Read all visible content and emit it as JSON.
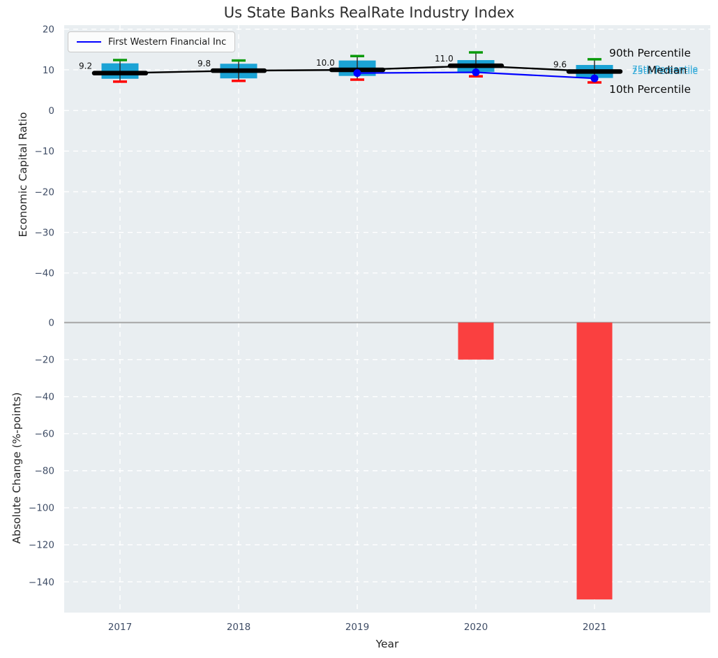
{
  "title": "Us State Banks RealRate Industry Index",
  "colors": {
    "box": "#1ba3d5",
    "bar": "#fa4040",
    "median": "#000000",
    "company_line": "#0000ff",
    "cap_top": "#0a9a0a",
    "cap_bottom": "#ff0000",
    "whisker": "#2d2d2d",
    "plot_bg": "#e9eef1",
    "grid": "#ffffff",
    "zero_line": "#a6a6a6",
    "tick_text": "#3f4d66",
    "annotation_text": "#0d0d0d",
    "percentile_text": "#2aa7d8"
  },
  "chart_data": [
    {
      "type": "boxplot",
      "title": "Us State Banks RealRate Industry Index",
      "x": [
        2017,
        2018,
        2019,
        2020,
        2021
      ],
      "ylabel": "Economic Capital Ratio",
      "ylim": [
        -50,
        21
      ],
      "yticks": [
        20,
        10,
        0,
        -10,
        -20,
        -30,
        -40
      ],
      "ytick_labels": [
        "20",
        "10",
        "0",
        "−10",
        "−20",
        "−30",
        "−40"
      ],
      "grid": true,
      "legend_position": "upper left",
      "boxes": {
        "p90": [
          12.4,
          12.3,
          13.4,
          14.3,
          12.6
        ],
        "p75": [
          11.6,
          11.5,
          12.3,
          12.4,
          11.2
        ],
        "median": [
          9.2,
          9.8,
          10.0,
          11.0,
          9.6
        ],
        "p25": [
          7.8,
          7.9,
          8.5,
          9.5,
          8.0
        ],
        "p10": [
          7.1,
          7.3,
          7.6,
          8.4,
          6.9
        ]
      },
      "median_labels": [
        "9.2",
        "9.8",
        "10.0",
        "11.0",
        "9.6"
      ],
      "line_series": {
        "name": "First Western Financial Inc",
        "values": [
          null,
          null,
          9.2,
          9.4,
          7.9
        ]
      },
      "annotations": {
        "p90": "90th Percentile",
        "p75": "75th Percentile",
        "median": "Median",
        "p25": "25th Percentile",
        "p10": "10th Percentile"
      }
    },
    {
      "type": "bar",
      "x": [
        2017,
        2018,
        2019,
        2020,
        2021
      ],
      "xtick_labels": [
        "2017",
        "2018",
        "2019",
        "2020",
        "2021"
      ],
      "xlabel": "Year",
      "ylabel": "Absolute Change (%-points)",
      "ylim": [
        -156.6,
        4.8
      ],
      "yticks": [
        0,
        -20,
        -40,
        -60,
        -80,
        -100,
        -120,
        -140
      ],
      "ytick_labels": [
        "0",
        "−20",
        "−40",
        "−60",
        "−80",
        "−100",
        "−120",
        "−140"
      ],
      "grid": true,
      "values": [
        null,
        null,
        null,
        -20,
        -149.5
      ]
    }
  ]
}
